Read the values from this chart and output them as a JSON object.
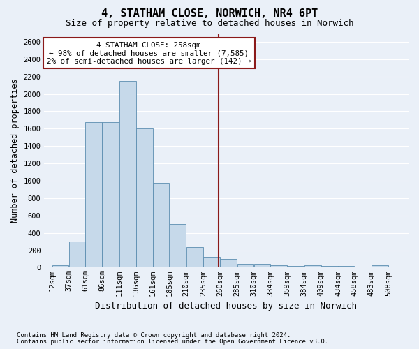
{
  "title": "4, STATHAM CLOSE, NORWICH, NR4 6PT",
  "subtitle": "Size of property relative to detached houses in Norwich",
  "xlabel": "Distribution of detached houses by size in Norwich",
  "ylabel": "Number of detached properties",
  "footnote1": "Contains HM Land Registry data © Crown copyright and database right 2024.",
  "footnote2": "Contains public sector information licensed under the Open Government Licence v3.0.",
  "annotation_title": "4 STATHAM CLOSE: 258sqm",
  "annotation_line1": "← 98% of detached houses are smaller (7,585)",
  "annotation_line2": "2% of semi-detached houses are larger (142) →",
  "property_size": 258,
  "bin_edges": [
    12,
    37,
    61,
    86,
    111,
    136,
    161,
    185,
    210,
    235,
    260,
    285,
    310,
    334,
    359,
    384,
    409,
    434,
    458,
    483,
    508,
    533
  ],
  "bar_heights": [
    25,
    300,
    1675,
    1675,
    2150,
    1600,
    975,
    500,
    240,
    120,
    100,
    45,
    45,
    30,
    20,
    25,
    20,
    20,
    5,
    25,
    5
  ],
  "bar_color": "#c6d9ea",
  "bar_edge_color": "#5b8db0",
  "vline_color": "#8b1a1a",
  "ylim": [
    0,
    2700
  ],
  "yticks": [
    0,
    200,
    400,
    600,
    800,
    1000,
    1200,
    1400,
    1600,
    1800,
    2000,
    2200,
    2400,
    2600
  ],
  "xlim_left": 0,
  "bg_color": "#eaf0f8",
  "grid_color": "#ffffff",
  "annotation_box_color": "#ffffff",
  "annotation_box_edge": "#8b1a1a",
  "title_fontsize": 11,
  "subtitle_fontsize": 9,
  "xlabel_fontsize": 9,
  "ylabel_fontsize": 8.5,
  "tick_fontsize": 7.5,
  "footnote_fontsize": 6.5
}
